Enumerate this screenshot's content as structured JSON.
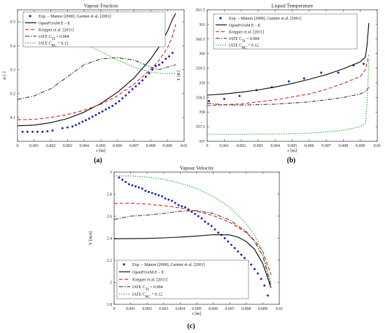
{
  "panels": [
    {
      "id": "a",
      "caption": "(a)",
      "chart_data": {
        "type": "line",
        "title": "Vapour Fraction",
        "xlabel": "r [m]",
        "ylabel": "α [-]",
        "xlim": [
          0,
          0.01
        ],
        "ylim": [
          0,
          0.55
        ],
        "xticks": [
          0,
          0.001,
          0.002,
          0.003,
          0.004,
          0.005,
          0.006,
          0.007,
          0.008,
          0.009,
          0.01
        ],
        "xtick_labels": [
          "0",
          "0.001",
          "0.002",
          "0.003",
          "0.004",
          "0.005",
          "0.006",
          "0.007",
          "0.008",
          "0.009",
          "0.01"
        ],
        "yticks": [
          0.1,
          0.2,
          0.3,
          0.4,
          0.5
        ],
        "ytick_labels": [
          "0.1",
          "0.2",
          "0.3",
          "0.4",
          "0.5"
        ],
        "grid": false,
        "legend_position": "top-left",
        "series": [
          {
            "name": "Exp. – Manon [2000], Garnier et al. [2001]",
            "style": "dots",
            "color": "#1f1fcc",
            "x": [
              0.0003,
              0.0006,
              0.0009,
              0.0012,
              0.0015,
              0.0018,
              0.0021,
              0.0027,
              0.003,
              0.0033,
              0.0035,
              0.0037,
              0.0039,
              0.0041,
              0.0043,
              0.0045,
              0.0047,
              0.0049,
              0.0051,
              0.0053,
              0.0055,
              0.0057,
              0.0059,
              0.0061,
              0.0063,
              0.0065,
              0.0067,
              0.0069,
              0.0071,
              0.0073,
              0.0075,
              0.0077,
              0.0079,
              0.0081,
              0.0083,
              0.0085,
              0.0087,
              0.0089,
              0.0091,
              0.0093
            ],
            "y": [
              0.04,
              0.04,
              0.04,
              0.04,
              0.04,
              0.042,
              0.045,
              0.055,
              0.058,
              0.062,
              0.068,
              0.075,
              0.082,
              0.088,
              0.095,
              0.103,
              0.11,
              0.118,
              0.125,
              0.133,
              0.14,
              0.148,
              0.158,
              0.168,
              0.18,
              0.192,
              0.205,
              0.218,
              0.23,
              0.242,
              0.255,
              0.27,
              0.285,
              0.3,
              0.315,
              0.32,
              0.33,
              0.345,
              0.355,
              0.37
            ]
          },
          {
            "name": "OpenFOAM E – E",
            "style": "solid",
            "color": "#000000",
            "x": [
              0,
              0.001,
              0.002,
              0.003,
              0.004,
              0.005,
              0.006,
              0.007,
              0.008,
              0.0085,
              0.009,
              0.0093,
              0.0095
            ],
            "y": [
              0.065,
              0.068,
              0.078,
              0.095,
              0.122,
              0.158,
              0.205,
              0.265,
              0.345,
              0.395,
              0.46,
              0.51,
              0.535
            ]
          },
          {
            "name": "Krepper et al. [2011]",
            "style": "dashed",
            "color": "#e31a1c",
            "x": [
              0,
              0.001,
              0.002,
              0.003,
              0.004,
              0.005,
              0.006,
              0.007,
              0.008,
              0.0085,
              0.009,
              0.0093,
              0.0095
            ],
            "y": [
              0.09,
              0.092,
              0.1,
              0.112,
              0.13,
              0.155,
              0.19,
              0.24,
              0.3,
              0.34,
              0.39,
              0.44,
              0.49
            ]
          },
          {
            "name": "IATE C_TI = 0.004",
            "style": "dashdot",
            "color": "#3a3a3a",
            "x": [
              0,
              0.001,
              0.002,
              0.003,
              0.004,
              0.005,
              0.006,
              0.007,
              0.0075,
              0.008,
              0.0085,
              0.009,
              0.0095
            ],
            "y": [
              0.175,
              0.19,
              0.22,
              0.27,
              0.32,
              0.345,
              0.35,
              0.34,
              0.325,
              0.31,
              0.3,
              0.31,
              0.32
            ]
          },
          {
            "name": "IATE C_RC = 0.12",
            "style": "dotted",
            "color": "#22aa22",
            "x": [
              0,
              0.001,
              0.002,
              0.003,
              0.004,
              0.005,
              0.006,
              0.007,
              0.008,
              0.0085,
              0.009,
              0.0095
            ],
            "y": [
              0.5,
              0.49,
              0.47,
              0.44,
              0.41,
              0.375,
              0.34,
              0.31,
              0.29,
              0.285,
              0.283,
              0.283
            ]
          }
        ]
      }
    },
    {
      "id": "b",
      "caption": "(b)",
      "chart_data": {
        "type": "line",
        "title": "Liquid Temperature",
        "xlabel": "r [m]",
        "ylabel": "T [K]",
        "xlim": [
          0,
          0.01
        ],
        "ylim": [
          357,
          361.5
        ],
        "xticks": [
          0,
          0.001,
          0.002,
          0.003,
          0.004,
          0.005,
          0.006,
          0.007,
          0.008,
          0.009,
          0.01
        ],
        "xtick_labels": [
          "0",
          "0.001",
          "0.002",
          "0.003",
          "0.004",
          "0.005",
          "0.006",
          "0.007",
          "0.008",
          "0.009",
          "0.01"
        ],
        "yticks": [
          357,
          357.5,
          358,
          358.5,
          359,
          359.5,
          360,
          360.5,
          361,
          361.5
        ],
        "ytick_labels": [
          "357",
          "357.5",
          "358",
          "358.5",
          "359",
          "359.5",
          "360",
          "360.5",
          "361",
          "361.5"
        ],
        "grid": false,
        "legend_position": "top-left",
        "series": [
          {
            "name": "Exp. – Manon [2000], Garnier et al. [2001]",
            "style": "dots",
            "color": "#1f1fcc",
            "x": [
              0.0001,
              0.001,
              0.0019,
              0.0029,
              0.0038,
              0.0048,
              0.0057,
              0.0067,
              0.0077,
              0.0086,
              0.0092
            ],
            "y": [
              358.38,
              358.45,
              358.55,
              358.75,
              358.85,
              359.05,
              359.15,
              359.35,
              359.35,
              359.6,
              359.65
            ]
          },
          {
            "name": "OpenFOAM E – E",
            "style": "solid",
            "color": "#000000",
            "x": [
              0,
              0.001,
              0.002,
              0.003,
              0.004,
              0.005,
              0.006,
              0.007,
              0.008,
              0.009,
              0.0093,
              0.0094,
              0.0095
            ],
            "y": [
              358.58,
              358.62,
              358.68,
              358.76,
              358.86,
              358.98,
              359.12,
              359.28,
              359.48,
              359.72,
              359.88,
              360.3,
              361.05
            ]
          },
          {
            "name": "Krepper et al. [2011]",
            "style": "dashed",
            "color": "#e31a1c",
            "x": [
              0,
              0.002,
              0.004,
              0.006,
              0.007,
              0.008,
              0.009,
              0.0093,
              0.0095
            ],
            "y": [
              358.22,
              358.28,
              358.42,
              358.62,
              358.78,
              358.98,
              359.22,
              359.45,
              359.95
            ]
          },
          {
            "name": "IATE C_TI = 0.004",
            "style": "dashdot",
            "color": "#3a3a3a",
            "x": [
              0,
              0.001,
              0.002,
              0.004,
              0.006,
              0.007,
              0.008,
              0.009,
              0.0093,
              0.0095
            ],
            "y": [
              358.3,
              358.25,
              358.24,
              358.27,
              358.35,
              358.42,
              358.5,
              358.62,
              358.7,
              358.85
            ]
          },
          {
            "name": "IATE C_RC = 0.12",
            "style": "dotted",
            "color": "#22aa22",
            "x": [
              0,
              0.002,
              0.004,
              0.006,
              0.007,
              0.008,
              0.009,
              0.0093,
              0.0094,
              0.0095
            ],
            "y": [
              357.24,
              357.24,
              357.25,
              357.28,
              357.32,
              357.38,
              357.5,
              357.62,
              358.3,
              359.8
            ]
          }
        ]
      }
    },
    {
      "id": "c",
      "caption": "(c)",
      "chart_data": {
        "type": "line",
        "title": "Vapour Velocity",
        "xlabel": "r [m]",
        "ylabel": "V [m/s]",
        "xlim": [
          0,
          0.01
        ],
        "ylim": [
          1.8,
          3
        ],
        "xticks": [
          0,
          0.001,
          0.002,
          0.003,
          0.004,
          0.005,
          0.006,
          0.007,
          0.008,
          0.009,
          0.01
        ],
        "xtick_labels": [
          "0",
          "0.001",
          "0.002",
          "0.003",
          "0.004",
          "0.005",
          "0.006",
          "0.007",
          "0.008",
          "0.009",
          "0.01"
        ],
        "yticks": [
          1.8,
          2,
          2.2,
          2.4,
          2.6,
          2.8,
          3
        ],
        "ytick_labels": [
          "1.8",
          "2",
          "2.2",
          "2.4",
          "2.6",
          "2.8",
          "3"
        ],
        "grid": false,
        "legend_position": "bottom-left",
        "series": [
          {
            "name": "Exp. – Manon [2000], Garnier et al. [2001]",
            "style": "dots",
            "color": "#1f1fcc",
            "x": [
              0.0003,
              0.0005,
              0.0007,
              0.0009,
              0.0011,
              0.0013,
              0.0015,
              0.0017,
              0.0019,
              0.0021,
              0.0023,
              0.0025,
              0.0027,
              0.0029,
              0.0031,
              0.0033,
              0.0035,
              0.0037,
              0.0039,
              0.0041,
              0.0043,
              0.0045,
              0.0047,
              0.0049,
              0.0051,
              0.0053,
              0.0055,
              0.0057,
              0.0059,
              0.0061,
              0.0063,
              0.0065,
              0.0067,
              0.0069,
              0.0071,
              0.0073,
              0.0075,
              0.0077,
              0.0079,
              0.0081,
              0.0083,
              0.0085,
              0.0087,
              0.0089,
              0.0091,
              0.0093
            ],
            "y": [
              2.95,
              2.93,
              2.91,
              2.89,
              2.88,
              2.87,
              2.86,
              2.85,
              2.83,
              2.82,
              2.81,
              2.8,
              2.79,
              2.78,
              2.76,
              2.75,
              2.74,
              2.72,
              2.7,
              2.69,
              2.68,
              2.66,
              2.64,
              2.62,
              2.6,
              2.58,
              2.55,
              2.53,
              2.51,
              2.48,
              2.45,
              2.43,
              2.4,
              2.37,
              2.34,
              2.31,
              2.28,
              2.25,
              2.22,
              2.19,
              2.16,
              2.12,
              2.08,
              2.03,
              1.97,
              1.88
            ]
          },
          {
            "name": "OpenFOAM E – E",
            "style": "solid",
            "color": "#000000",
            "x": [
              0,
              0.001,
              0.002,
              0.003,
              0.004,
              0.005,
              0.006,
              0.007,
              0.0075,
              0.008,
              0.0085,
              0.009,
              0.0095
            ],
            "y": [
              2.395,
              2.396,
              2.398,
              2.403,
              2.41,
              2.42,
              2.432,
              2.43,
              2.41,
              2.37,
              2.3,
              2.17,
              1.95
            ]
          },
          {
            "name": "Krepper et al. [2011]",
            "style": "dashed",
            "color": "#e31a1c",
            "x": [
              0,
              0.001,
              0.002,
              0.003,
              0.004,
              0.005,
              0.006,
              0.007,
              0.008,
              0.0085,
              0.009,
              0.0095
            ],
            "y": [
              2.715,
              2.718,
              2.71,
              2.695,
              2.675,
              2.645,
              2.605,
              2.545,
              2.45,
              2.38,
              2.28,
              2.07
            ]
          },
          {
            "name": "IATE C_TI = 0.004",
            "style": "dashdot",
            "color": "#3a3a3a",
            "x": [
              0,
              0.001,
              0.002,
              0.003,
              0.004,
              0.005,
              0.006,
              0.007,
              0.008,
              0.0085,
              0.009,
              0.0095
            ],
            "y": [
              2.57,
              2.6,
              2.61,
              2.625,
              2.645,
              2.65,
              2.625,
              2.565,
              2.46,
              2.37,
              2.24,
              1.96
            ]
          },
          {
            "name": "IATE C_RC = 0.12",
            "style": "dotted",
            "color": "#22aa22",
            "x": [
              0,
              0.001,
              0.002,
              0.003,
              0.004,
              0.005,
              0.006,
              0.007,
              0.008,
              0.0085,
              0.009,
              0.0095
            ],
            "y": [
              2.965,
              2.965,
              2.955,
              2.935,
              2.9,
              2.85,
              2.78,
              2.68,
              2.53,
              2.43,
              2.28,
              1.99
            ]
          }
        ]
      }
    }
  ]
}
